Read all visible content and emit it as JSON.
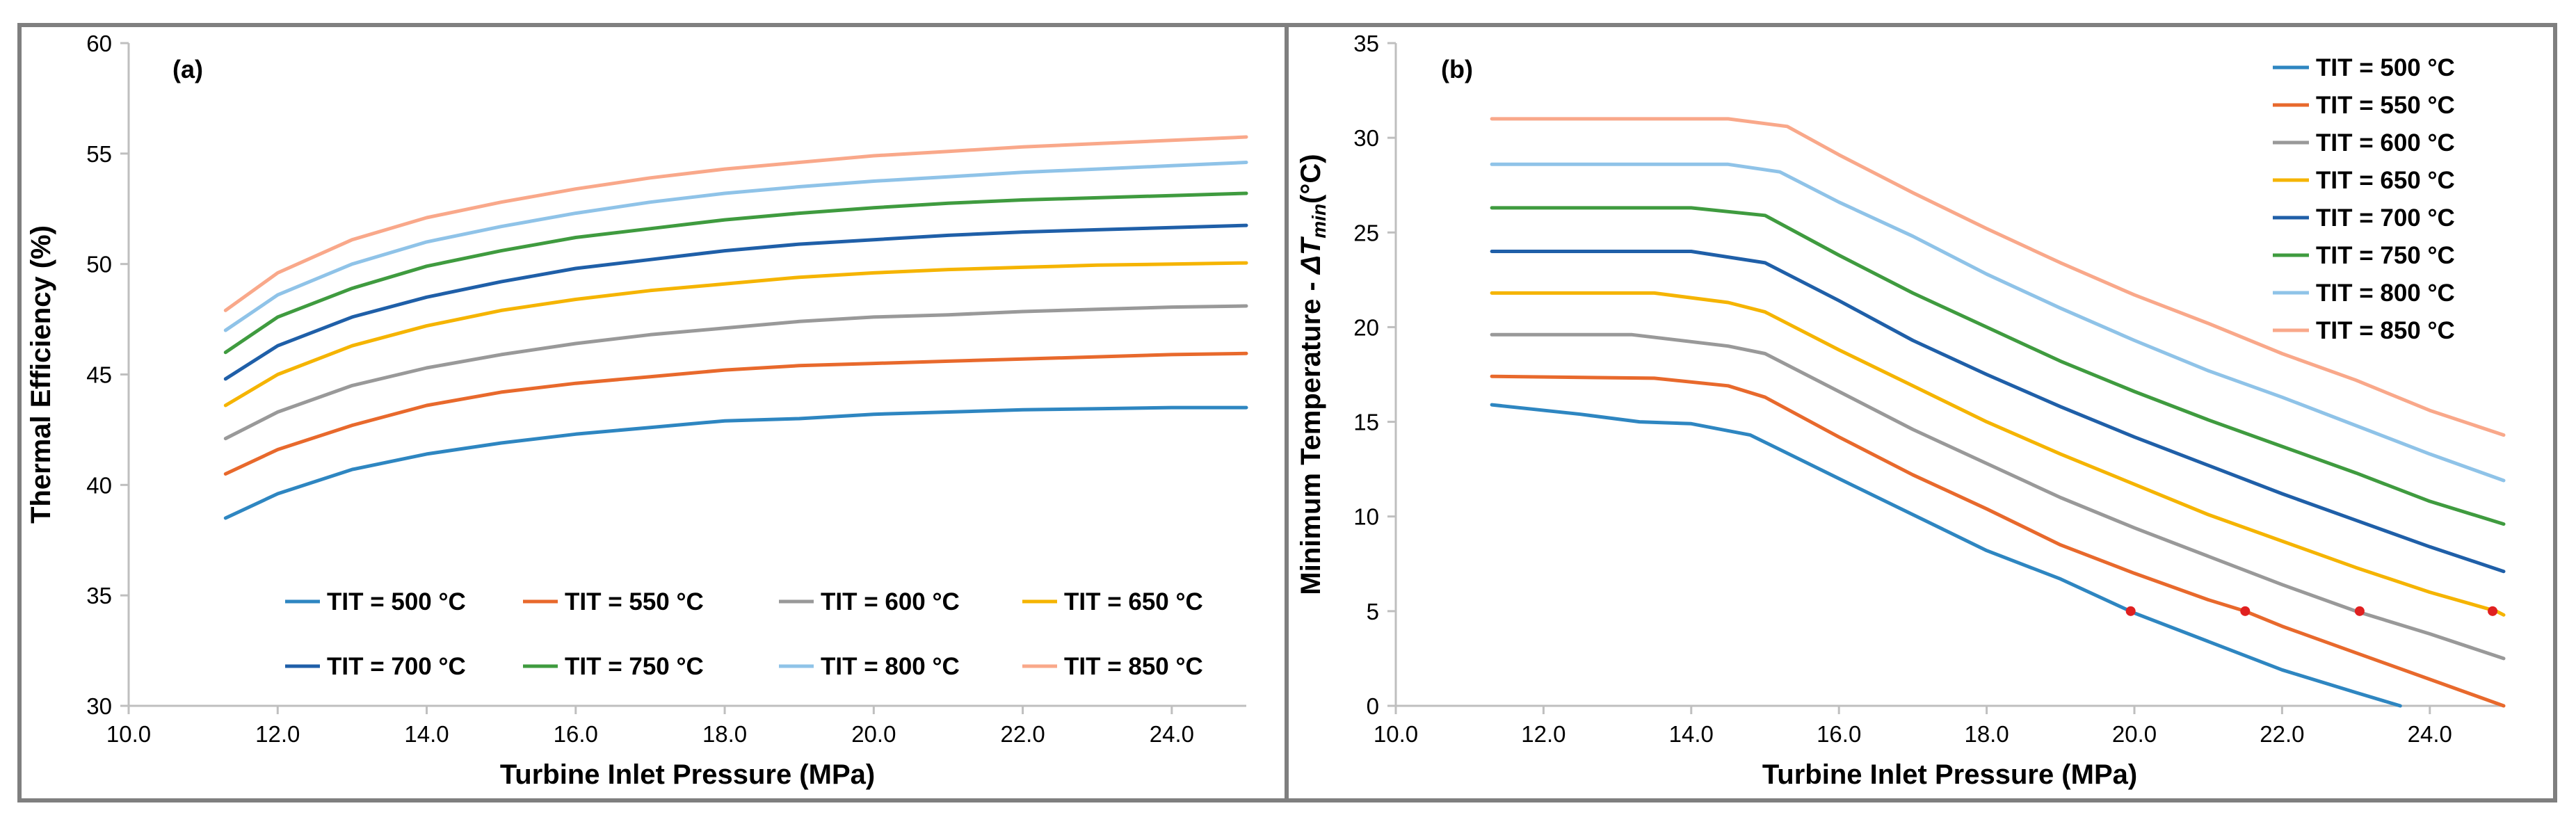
{
  "chart_data": [
    {
      "type": "line",
      "panel_label": "(a)",
      "xlabel": "Turbine Inlet Pressure (MPa)",
      "ylabel": "Thermal Efficiency (%)",
      "xlim": [
        10,
        25
      ],
      "ylim": [
        30,
        60
      ],
      "xticks": [
        "10.0",
        "12.0",
        "14.0",
        "16.0",
        "18.0",
        "20.0",
        "22.0",
        "24.0"
      ],
      "yticks": [
        "30",
        "35",
        "40",
        "45",
        "50",
        "55",
        "60"
      ],
      "legend_position": "bottom (inside plot)",
      "x": [
        11.3,
        12,
        13,
        14,
        15,
        16,
        17,
        18,
        19,
        20,
        21,
        22,
        23,
        24,
        25
      ],
      "series": [
        {
          "name": "TIT = 500 °C",
          "color": "#2e86c1",
          "values": [
            38.5,
            39.6,
            40.7,
            41.4,
            41.9,
            42.3,
            42.6,
            42.9,
            43.0,
            43.2,
            43.3,
            43.4,
            43.45,
            43.5,
            43.5
          ]
        },
        {
          "name": "TIT = 550 °C",
          "color": "#e8692c",
          "values": [
            40.5,
            41.6,
            42.7,
            43.6,
            44.2,
            44.6,
            44.9,
            45.2,
            45.4,
            45.5,
            45.6,
            45.7,
            45.8,
            45.9,
            45.95
          ]
        },
        {
          "name": "TIT = 600 °C",
          "color": "#999999",
          "values": [
            42.1,
            43.3,
            44.5,
            45.3,
            45.9,
            46.4,
            46.8,
            47.1,
            47.4,
            47.6,
            47.7,
            47.85,
            47.95,
            48.05,
            48.1
          ]
        },
        {
          "name": "TIT = 650 °C",
          "color": "#f5b400",
          "values": [
            43.6,
            45.0,
            46.3,
            47.2,
            47.9,
            48.4,
            48.8,
            49.1,
            49.4,
            49.6,
            49.75,
            49.85,
            49.95,
            50.0,
            50.05
          ]
        },
        {
          "name": "TIT = 700 °C",
          "color": "#1f5fa8",
          "values": [
            44.8,
            46.3,
            47.6,
            48.5,
            49.2,
            49.8,
            50.2,
            50.6,
            50.9,
            51.1,
            51.3,
            51.45,
            51.55,
            51.65,
            51.75
          ]
        },
        {
          "name": "TIT = 750 °C",
          "color": "#3f9b3f",
          "values": [
            46.0,
            47.6,
            48.9,
            49.9,
            50.6,
            51.2,
            51.6,
            52.0,
            52.3,
            52.55,
            52.75,
            52.9,
            53.0,
            53.1,
            53.2
          ]
        },
        {
          "name": "TIT = 800 °C",
          "color": "#8fc3e8",
          "values": [
            47.0,
            48.6,
            50.0,
            51.0,
            51.7,
            52.3,
            52.8,
            53.2,
            53.5,
            53.75,
            53.95,
            54.15,
            54.3,
            54.45,
            54.6
          ]
        },
        {
          "name": "TIT = 850 °C",
          "color": "#f9a88a",
          "values": [
            47.9,
            49.6,
            51.1,
            52.1,
            52.8,
            53.4,
            53.9,
            54.3,
            54.6,
            54.9,
            55.1,
            55.3,
            55.45,
            55.6,
            55.75
          ]
        }
      ]
    },
    {
      "type": "line",
      "panel_label": "(b)",
      "xlabel": "Turbine Inlet Pressure (MPa)",
      "ylabel_prefix": "Minimum Temperature - ",
      "ylabel_symbol": "ΔT",
      "ylabel_subscript": "min",
      "ylabel_suffix": "(°C)",
      "xlim": [
        10,
        25
      ],
      "ylim": [
        0,
        35
      ],
      "xticks": [
        "10.0",
        "12.0",
        "14.0",
        "16.0",
        "18.0",
        "20.0",
        "22.0",
        "24.0"
      ],
      "yticks": [
        "0",
        "5",
        "10",
        "15",
        "20",
        "25",
        "30",
        "35"
      ],
      "legend_position": "top-right",
      "series": [
        {
          "name": "TIT = 500 °C",
          "color": "#2e86c1",
          "points": [
            [
              11.3,
              15.9
            ],
            [
              12.5,
              15.4
            ],
            [
              13.3,
              15.0
            ],
            [
              14.0,
              14.9
            ],
            [
              14.8,
              14.3
            ],
            [
              16.0,
              12.0
            ],
            [
              17.0,
              10.1
            ],
            [
              18.0,
              8.2
            ],
            [
              19.0,
              6.7
            ],
            [
              20.0,
              4.9
            ],
            [
              21.0,
              3.4
            ],
            [
              22.0,
              1.9
            ],
            [
              23.0,
              0.7
            ],
            [
              23.6,
              0.0
            ]
          ]
        },
        {
          "name": "TIT = 550 °C",
          "color": "#e8692c",
          "points": [
            [
              11.3,
              17.4
            ],
            [
              13.5,
              17.3
            ],
            [
              14.5,
              16.9
            ],
            [
              15.0,
              16.3
            ],
            [
              16.0,
              14.2
            ],
            [
              17.0,
              12.2
            ],
            [
              18.0,
              10.4
            ],
            [
              19.0,
              8.5
            ],
            [
              20.0,
              7.0
            ],
            [
              21.0,
              5.6
            ],
            [
              21.5,
              5.0
            ],
            [
              22.0,
              4.2
            ],
            [
              23.0,
              2.8
            ],
            [
              24.0,
              1.4
            ],
            [
              25.0,
              0.0
            ]
          ]
        },
        {
          "name": "TIT = 600 °C",
          "color": "#999999",
          "points": [
            [
              11.3,
              19.6
            ],
            [
              13.2,
              19.6
            ],
            [
              14.5,
              19.0
            ],
            [
              15.0,
              18.6
            ],
            [
              16.0,
              16.6
            ],
            [
              17.0,
              14.6
            ],
            [
              18.0,
              12.8
            ],
            [
              19.0,
              11.0
            ],
            [
              20.0,
              9.4
            ],
            [
              21.0,
              7.9
            ],
            [
              22.0,
              6.4
            ],
            [
              23.0,
              5.0
            ],
            [
              24.0,
              3.8
            ],
            [
              25.0,
              2.5
            ]
          ]
        },
        {
          "name": "TIT = 650 °C",
          "color": "#f5b400",
          "points": [
            [
              11.3,
              21.8
            ],
            [
              13.5,
              21.8
            ],
            [
              14.5,
              21.3
            ],
            [
              15.0,
              20.8
            ],
            [
              16.0,
              18.8
            ],
            [
              17.0,
              16.9
            ],
            [
              18.0,
              15.0
            ],
            [
              19.0,
              13.3
            ],
            [
              20.0,
              11.7
            ],
            [
              21.0,
              10.1
            ],
            [
              22.0,
              8.7
            ],
            [
              23.0,
              7.3
            ],
            [
              24.0,
              6.0
            ],
            [
              24.9,
              5.0
            ],
            [
              25.0,
              4.8
            ]
          ]
        },
        {
          "name": "TIT = 700 °C",
          "color": "#1f5fa8",
          "points": [
            [
              11.3,
              24.0
            ],
            [
              14.0,
              24.0
            ],
            [
              15.0,
              23.4
            ],
            [
              16.0,
              21.4
            ],
            [
              17.0,
              19.3
            ],
            [
              18.0,
              17.5
            ],
            [
              19.0,
              15.8
            ],
            [
              20.0,
              14.2
            ],
            [
              21.0,
              12.7
            ],
            [
              22.0,
              11.2
            ],
            [
              23.0,
              9.8
            ],
            [
              24.0,
              8.4
            ],
            [
              25.0,
              7.1
            ]
          ]
        },
        {
          "name": "TIT = 750 °C",
          "color": "#3f9b3f",
          "points": [
            [
              11.3,
              26.3
            ],
            [
              14.0,
              26.3
            ],
            [
              15.0,
              25.9
            ],
            [
              16.0,
              23.8
            ],
            [
              17.0,
              21.8
            ],
            [
              18.0,
              20.0
            ],
            [
              19.0,
              18.2
            ],
            [
              20.0,
              16.6
            ],
            [
              21.0,
              15.1
            ],
            [
              22.0,
              13.7
            ],
            [
              23.0,
              12.3
            ],
            [
              24.0,
              10.8
            ],
            [
              25.0,
              9.6
            ]
          ]
        },
        {
          "name": "TIT = 800 °C",
          "color": "#8fc3e8",
          "points": [
            [
              11.3,
              28.6
            ],
            [
              14.5,
              28.6
            ],
            [
              15.2,
              28.2
            ],
            [
              16.0,
              26.6
            ],
            [
              17.0,
              24.8
            ],
            [
              18.0,
              22.8
            ],
            [
              19.0,
              21.0
            ],
            [
              20.0,
              19.3
            ],
            [
              21.0,
              17.7
            ],
            [
              22.0,
              16.3
            ],
            [
              23.0,
              14.8
            ],
            [
              24.0,
              13.3
            ],
            [
              25.0,
              11.9
            ]
          ]
        },
        {
          "name": "TIT = 850 °C",
          "color": "#f9a88a",
          "points": [
            [
              11.3,
              31.0
            ],
            [
              14.5,
              31.0
            ],
            [
              15.3,
              30.6
            ],
            [
              16.0,
              29.1
            ],
            [
              17.0,
              27.1
            ],
            [
              18.0,
              25.2
            ],
            [
              19.0,
              23.4
            ],
            [
              20.0,
              21.7
            ],
            [
              21.0,
              20.2
            ],
            [
              22.0,
              18.6
            ],
            [
              23.0,
              17.2
            ],
            [
              24.0,
              15.6
            ],
            [
              25.0,
              14.3
            ]
          ]
        }
      ],
      "markers": {
        "color": "#e02020",
        "points": [
          [
            19.95,
            5.0
          ],
          [
            21.5,
            5.0
          ],
          [
            23.05,
            5.0
          ],
          [
            24.85,
            5.0
          ]
        ]
      }
    }
  ]
}
